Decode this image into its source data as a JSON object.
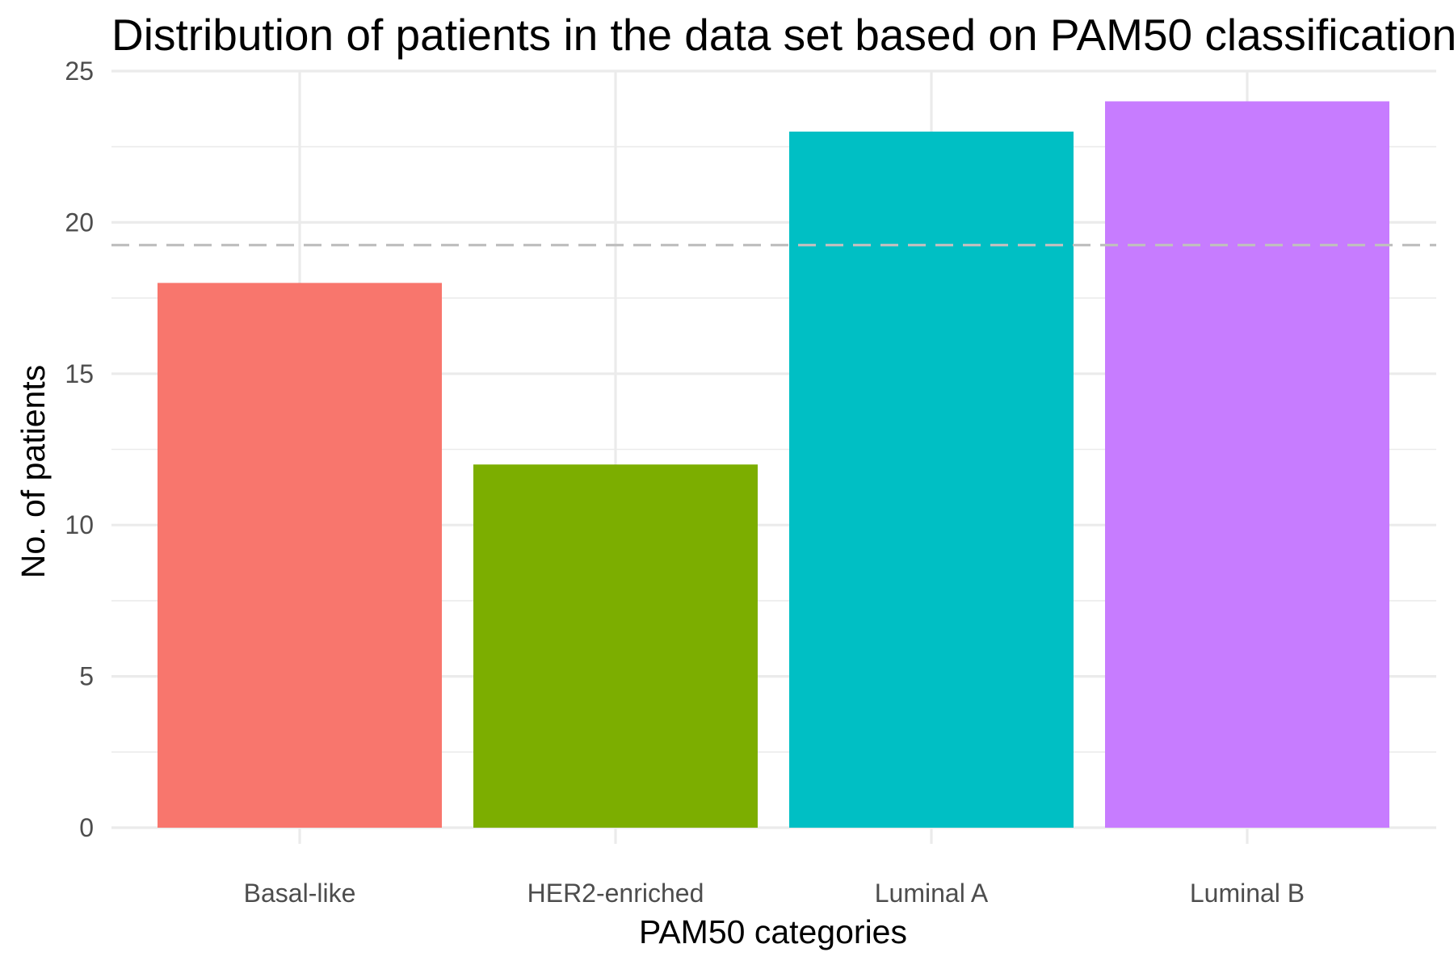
{
  "chart_data": {
    "type": "bar",
    "title": "Distribution of patients in the data set based on PAM50 classification",
    "xlabel": "PAM50 categories",
    "ylabel": "No. of patients",
    "categories": [
      "Basal-like",
      "HER2-enriched",
      "Luminal A",
      "Luminal B"
    ],
    "values": [
      18,
      12,
      23,
      24
    ],
    "colors": [
      "#F8766D",
      "#7CAE00",
      "#00BFC4",
      "#C77CFF"
    ],
    "ylim": [
      0,
      25
    ],
    "yticks": [
      0,
      5,
      10,
      15,
      20,
      25
    ],
    "reference_line": {
      "value": 19.25,
      "style": "dashed",
      "color": "#bfbfbf"
    },
    "grid": true,
    "grid_color": "#ebebeb",
    "legend": "none"
  }
}
